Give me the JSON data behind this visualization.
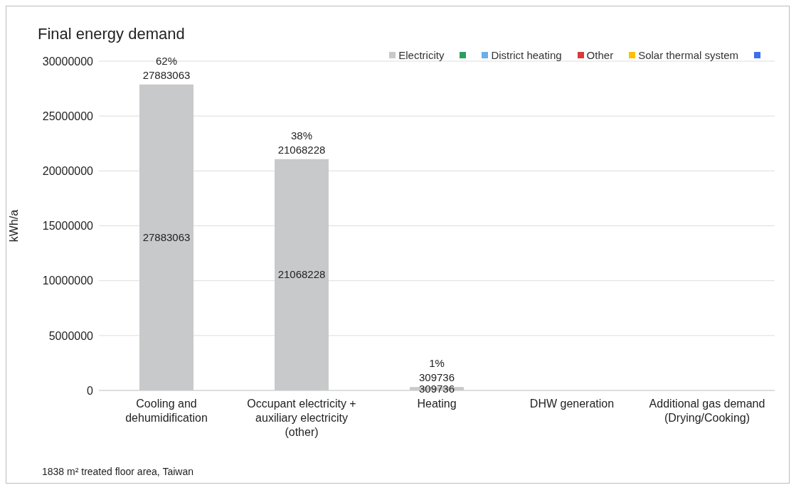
{
  "chart_data": {
    "type": "bar",
    "title": "Final energy demand",
    "ylabel": "kWh/a",
    "categories": [
      "Cooling and dehumidification",
      "Occupant electricity + auxiliary electricity (other)",
      "Heating",
      "DHW generation",
      "Additional gas demand (Drying/Cooking)"
    ],
    "series": [
      {
        "name": "Electricity",
        "color": "#c8c9cb",
        "values": [
          27883063,
          21068228,
          309736,
          null,
          null
        ],
        "value_labels": [
          "27883063",
          "21068228",
          "309736",
          null,
          null
        ]
      },
      {
        "color": "#2e9e5e",
        "values": [
          null,
          null,
          null,
          null,
          null
        ]
      },
      {
        "name": "District heating",
        "color": "#6aaeef",
        "values": [
          null,
          null,
          null,
          null,
          null
        ]
      },
      {
        "name": "Other",
        "color": "#d93a3a",
        "values": [
          null,
          null,
          null,
          null,
          null
        ]
      },
      {
        "name": "Solar thermal system",
        "color": "#ffc000",
        "values": [
          null,
          null,
          null,
          null,
          null
        ]
      },
      {
        "color": "#3a6ff0",
        "values": [
          null,
          null,
          null,
          null,
          null
        ]
      }
    ],
    "stacked": true,
    "totals": [
      "62%\n27883063",
      "38%\n21068228",
      "1%\n309736",
      null,
      null
    ],
    "ylim": [
      0,
      30000000
    ],
    "yticks": [
      0,
      5000000,
      10000000,
      15000000,
      20000000,
      25000000,
      30000000
    ],
    "grid": "y",
    "legend": "top right",
    "annotations": [
      "1838 m² treated floor area, Taiwan"
    ]
  }
}
